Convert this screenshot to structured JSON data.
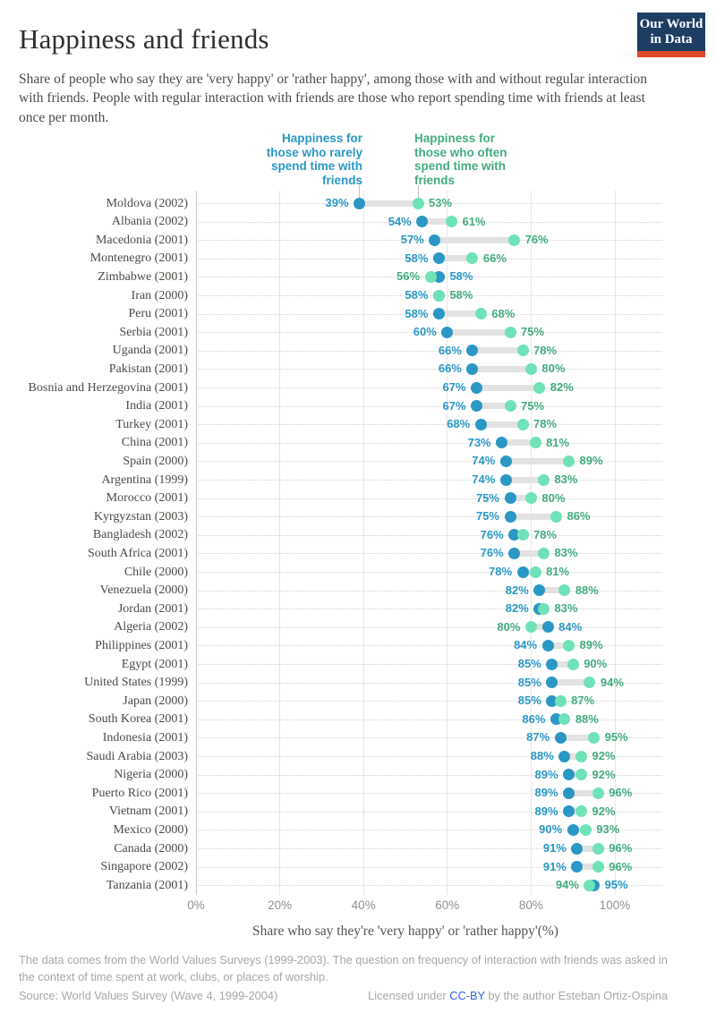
{
  "header": {
    "title": "Happiness and friends",
    "subtitle": "Share of people who say they are 'very happy' or 'rather happy', among those with and without regular interaction with friends. People with regular interaction with friends are those who report spending time with friends at least once per month.",
    "logo_line1": "Our World",
    "logo_line2": "in Data",
    "logo_bg_color": "#1d3d63",
    "logo_bar_color": "#e0492c"
  },
  "legend": {
    "rarely_lines": [
      "Happiness for",
      "those who rarely",
      "spend time with",
      "friends"
    ],
    "often_lines": [
      "Happiness for",
      "those who often",
      "spend time with",
      "friends"
    ],
    "rarely_color": "#2a97c5",
    "often_text_color": "#43ab80",
    "often_dot_color": "#6fe2b8"
  },
  "chart_data": {
    "type": "scatter",
    "variant": "dumbbell",
    "title": "Happiness and friends",
    "xlabel": "Share who say they're 'very happy' or 'rather happy'(%)",
    "xlim": [
      0,
      100
    ],
    "xticks": [
      "0%",
      "20%",
      "40%",
      "60%",
      "80%",
      "100%"
    ],
    "grid": "vertical-solid-plus-row-dotted",
    "series_meta": [
      {
        "name": "Happiness for those who rarely spend time with friends",
        "key": "rarely",
        "color": "#2a97c5"
      },
      {
        "name": "Happiness for those who often spend time with friends",
        "key": "often",
        "dot_color": "#6fe2b8",
        "text_color": "#43ab80"
      }
    ],
    "connector_color": "#e2e2e2",
    "rows": [
      {
        "label": "Moldova (2002)",
        "rarely": 39,
        "often": 53
      },
      {
        "label": "Albania (2002)",
        "rarely": 54,
        "often": 61
      },
      {
        "label": "Macedonia (2001)",
        "rarely": 57,
        "often": 76
      },
      {
        "label": "Montenegro (2001)",
        "rarely": 58,
        "often": 66
      },
      {
        "label": "Zimbabwe (2001)",
        "rarely": 58,
        "often": 56
      },
      {
        "label": "Iran (2000)",
        "rarely": 58,
        "often": 58
      },
      {
        "label": "Peru (2001)",
        "rarely": 58,
        "often": 68
      },
      {
        "label": "Serbia (2001)",
        "rarely": 60,
        "often": 75
      },
      {
        "label": "Uganda (2001)",
        "rarely": 66,
        "often": 78
      },
      {
        "label": "Pakistan (2001)",
        "rarely": 66,
        "often": 80
      },
      {
        "label": "Bosnia and Herzegovina (2001)",
        "rarely": 67,
        "often": 82
      },
      {
        "label": "India (2001)",
        "rarely": 67,
        "often": 75
      },
      {
        "label": "Turkey (2001)",
        "rarely": 68,
        "often": 78
      },
      {
        "label": "China (2001)",
        "rarely": 73,
        "often": 81
      },
      {
        "label": "Spain (2000)",
        "rarely": 74,
        "often": 89
      },
      {
        "label": "Argentina (1999)",
        "rarely": 74,
        "often": 83
      },
      {
        "label": "Morocco (2001)",
        "rarely": 75,
        "often": 80
      },
      {
        "label": "Kyrgyzstan (2003)",
        "rarely": 75,
        "often": 86
      },
      {
        "label": "Bangladesh (2002)",
        "rarely": 76,
        "often": 78
      },
      {
        "label": "South Africa (2001)",
        "rarely": 76,
        "often": 83
      },
      {
        "label": "Chile (2000)",
        "rarely": 78,
        "often": 81
      },
      {
        "label": "Venezuela (2000)",
        "rarely": 82,
        "often": 88
      },
      {
        "label": "Jordan (2001)",
        "rarely": 82,
        "often": 83
      },
      {
        "label": "Algeria (2002)",
        "rarely": 84,
        "often": 80
      },
      {
        "label": "Philippines (2001)",
        "rarely": 84,
        "often": 89
      },
      {
        "label": "Egypt (2001)",
        "rarely": 85,
        "often": 90
      },
      {
        "label": "United States (1999)",
        "rarely": 85,
        "often": 94
      },
      {
        "label": "Japan (2000)",
        "rarely": 85,
        "often": 87
      },
      {
        "label": "South Korea (2001)",
        "rarely": 86,
        "often": 88
      },
      {
        "label": "Indonesia (2001)",
        "rarely": 87,
        "often": 95
      },
      {
        "label": "Saudi Arabia (2003)",
        "rarely": 88,
        "often": 92
      },
      {
        "label": "Nigeria (2000)",
        "rarely": 89,
        "often": 92
      },
      {
        "label": "Puerto Rico (2001)",
        "rarely": 89,
        "often": 96
      },
      {
        "label": "Vietnam (2001)",
        "rarely": 89,
        "often": 92
      },
      {
        "label": "Mexico (2000)",
        "rarely": 90,
        "often": 93
      },
      {
        "label": "Canada (2000)",
        "rarely": 91,
        "often": 96
      },
      {
        "label": "Singapore (2002)",
        "rarely": 91,
        "often": 96
      },
      {
        "label": "Tanzania (2001)",
        "rarely": 95,
        "often": 94
      }
    ]
  },
  "footer": {
    "note": "The data comes from the World Values Surveys (1999-2003). The question on frequency of interaction with friends was asked in the context of time spent at work, clubs, or places of worship.",
    "source": "Source: World Values Survey (Wave 4, 1999-2004)",
    "license_prefix": "Licensed under ",
    "license_link": "CC-BY",
    "license_suffix": " by the author Esteban Ortiz-Ospina",
    "link_color": "#2c62e9"
  }
}
